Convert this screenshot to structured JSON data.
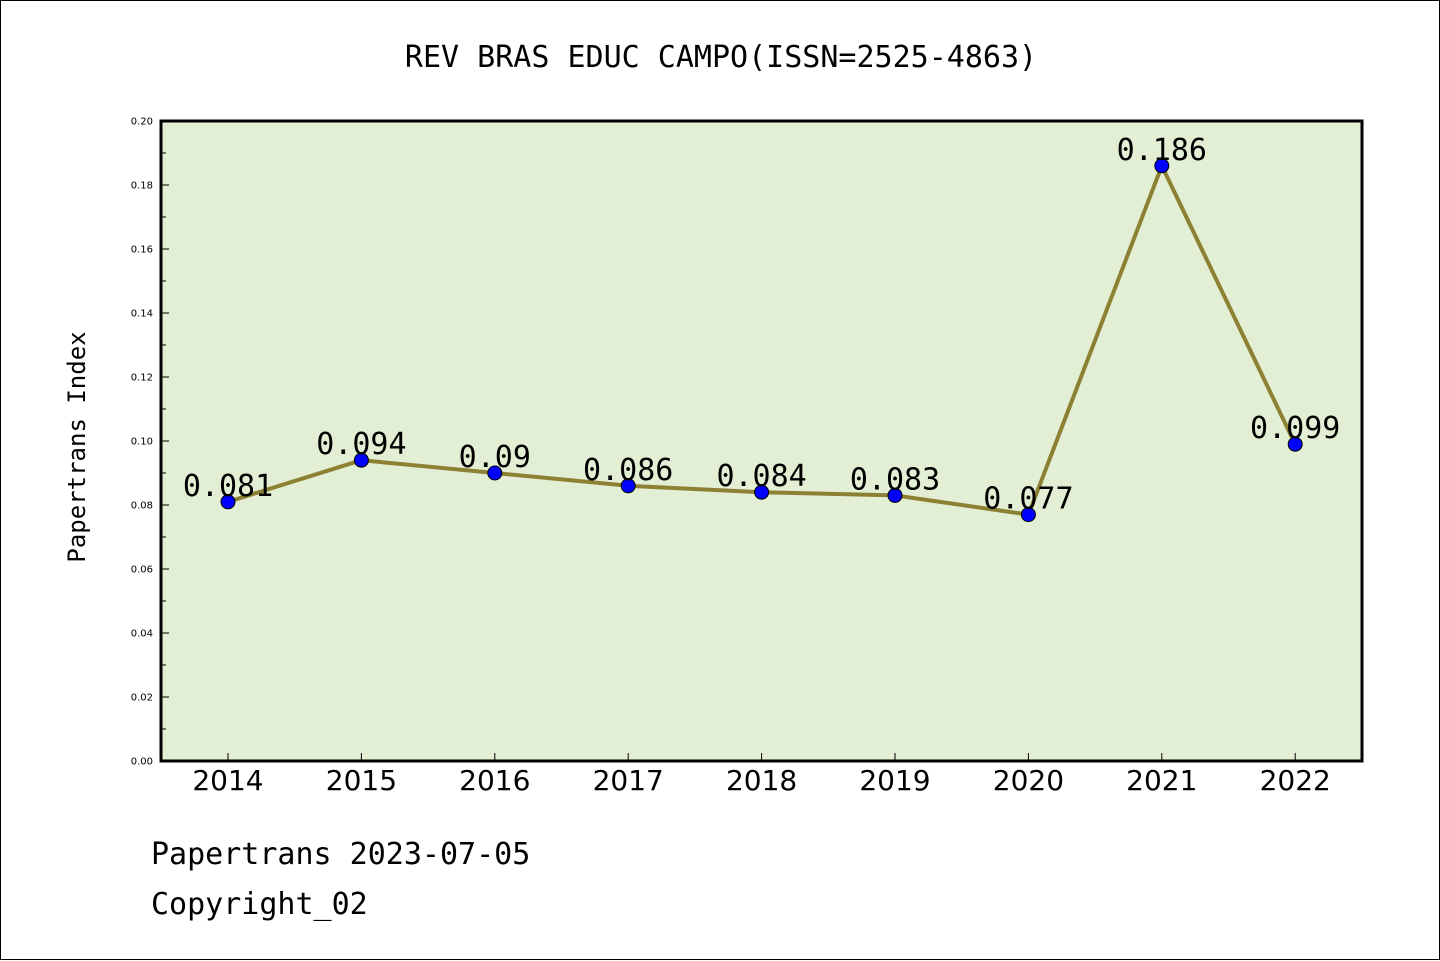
{
  "chart_data": {
    "type": "line",
    "title": "REV BRAS EDUC CAMPO(ISSN=2525-4863)",
    "xlabel": "",
    "ylabel": "Papertrans Index",
    "categories": [
      "2014",
      "2015",
      "2016",
      "2017",
      "2018",
      "2019",
      "2020",
      "2021",
      "2022"
    ],
    "values": [
      0.081,
      0.094,
      0.09,
      0.086,
      0.084,
      0.083,
      0.077,
      0.186,
      0.099
    ],
    "data_labels": [
      "0.081",
      "0.094",
      "0.09",
      "0.086",
      "0.084",
      "0.083",
      "0.077",
      "0.186",
      "0.099"
    ],
    "ylim": [
      0.0,
      0.2
    ],
    "y_ticks": [
      "0.00",
      "0.02",
      "0.04",
      "0.06",
      "0.08",
      "0.10",
      "0.12",
      "0.14",
      "0.16",
      "0.18",
      "0.20"
    ],
    "grid": false,
    "colors": {
      "plot_background": "#e2efd5",
      "line": "#8c8132",
      "marker": "#0000ff"
    }
  },
  "footer": {
    "line1": "Papertrans 2023-07-05",
    "line2": "Copyright_02"
  }
}
